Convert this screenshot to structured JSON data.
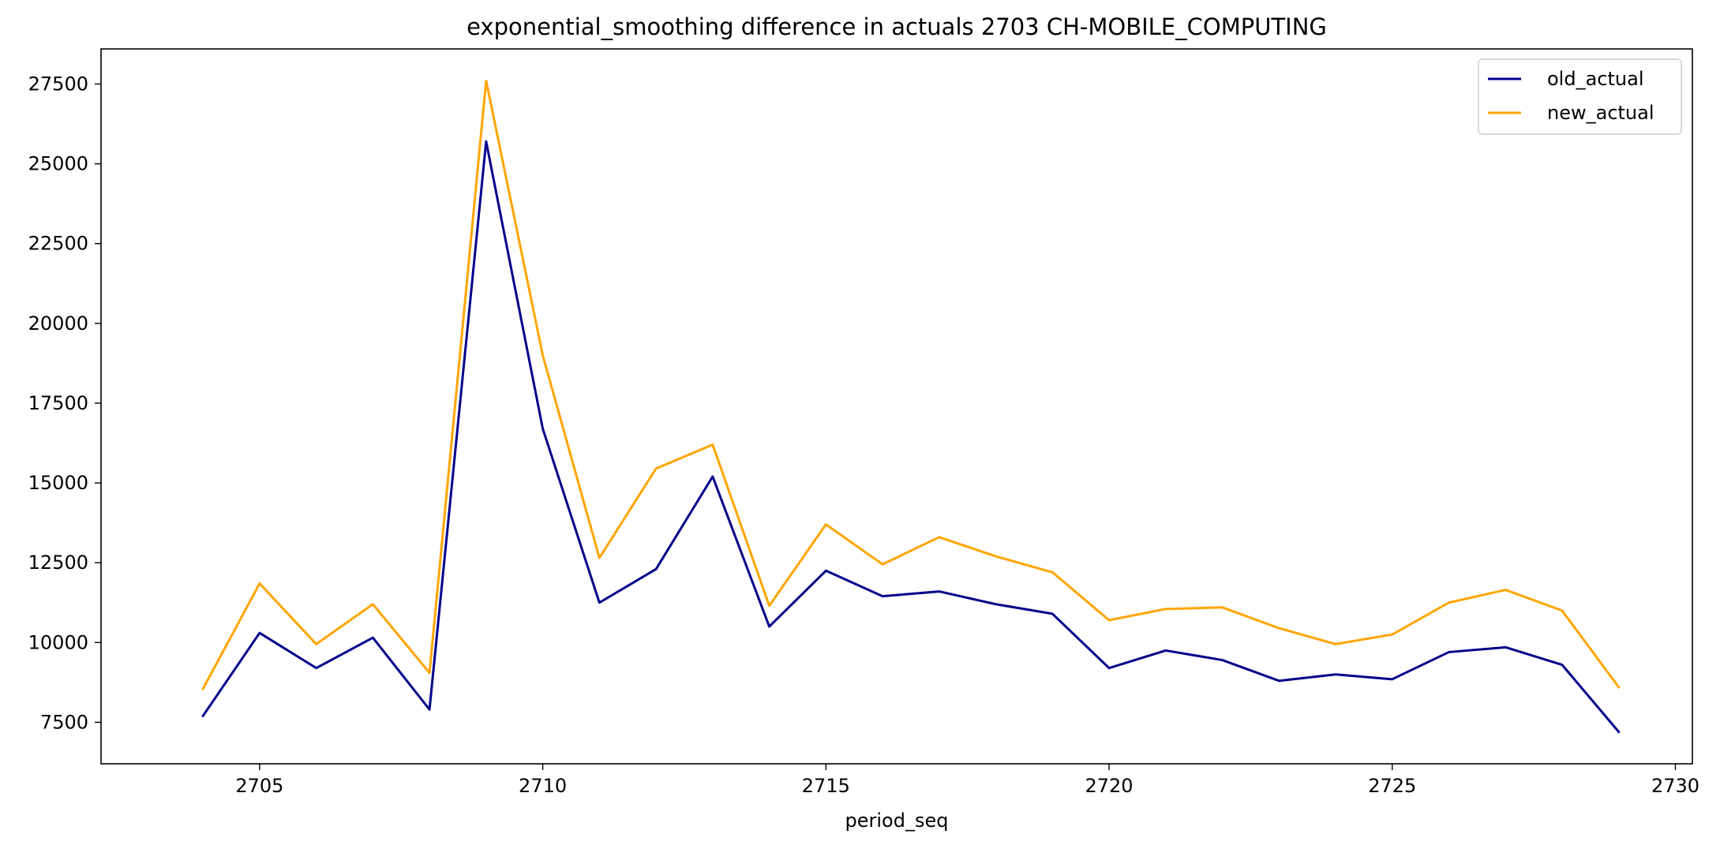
{
  "chart_data": {
    "type": "line",
    "title": "exponential_smoothing difference in actuals 2703 CH-MOBILE_COMPUTING",
    "xlabel": "period_seq",
    "ylabel": "",
    "xlim": [
      2702.2,
      2730.3
    ],
    "ylim": [
      6200,
      28600
    ],
    "xticks": [
      2705,
      2710,
      2715,
      2720,
      2725,
      2730
    ],
    "yticks": [
      7500,
      10000,
      12500,
      15000,
      17500,
      20000,
      22500,
      25000,
      27500
    ],
    "grid": false,
    "legend_position": "top-right",
    "x": [
      2704,
      2705,
      2706,
      2707,
      2708,
      2709,
      2710,
      2711,
      2712,
      2713,
      2714,
      2715,
      2716,
      2717,
      2718,
      2719,
      2720,
      2721,
      2722,
      2723,
      2724,
      2725,
      2726,
      2727,
      2728,
      2729
    ],
    "series": [
      {
        "name": "old_actual",
        "color": "#00008b",
        "values": [
          7700,
          10300,
          9200,
          10150,
          7900,
          25700,
          16700,
          11250,
          12300,
          15200,
          10500,
          12250,
          11450,
          11600,
          11200,
          10900,
          9200,
          9750,
          9450,
          8800,
          9000,
          8850,
          9700,
          9850,
          9300,
          7200
        ]
      },
      {
        "name": "new_actual",
        "color": "#ffa500",
        "values": [
          8550,
          11850,
          9950,
          11200,
          9050,
          27600,
          19000,
          12650,
          15450,
          16200,
          11150,
          13700,
          12450,
          13300,
          12700,
          12200,
          10700,
          11050,
          11100,
          10450,
          9950,
          10250,
          11250,
          11650,
          11000,
          8600
        ]
      }
    ]
  }
}
